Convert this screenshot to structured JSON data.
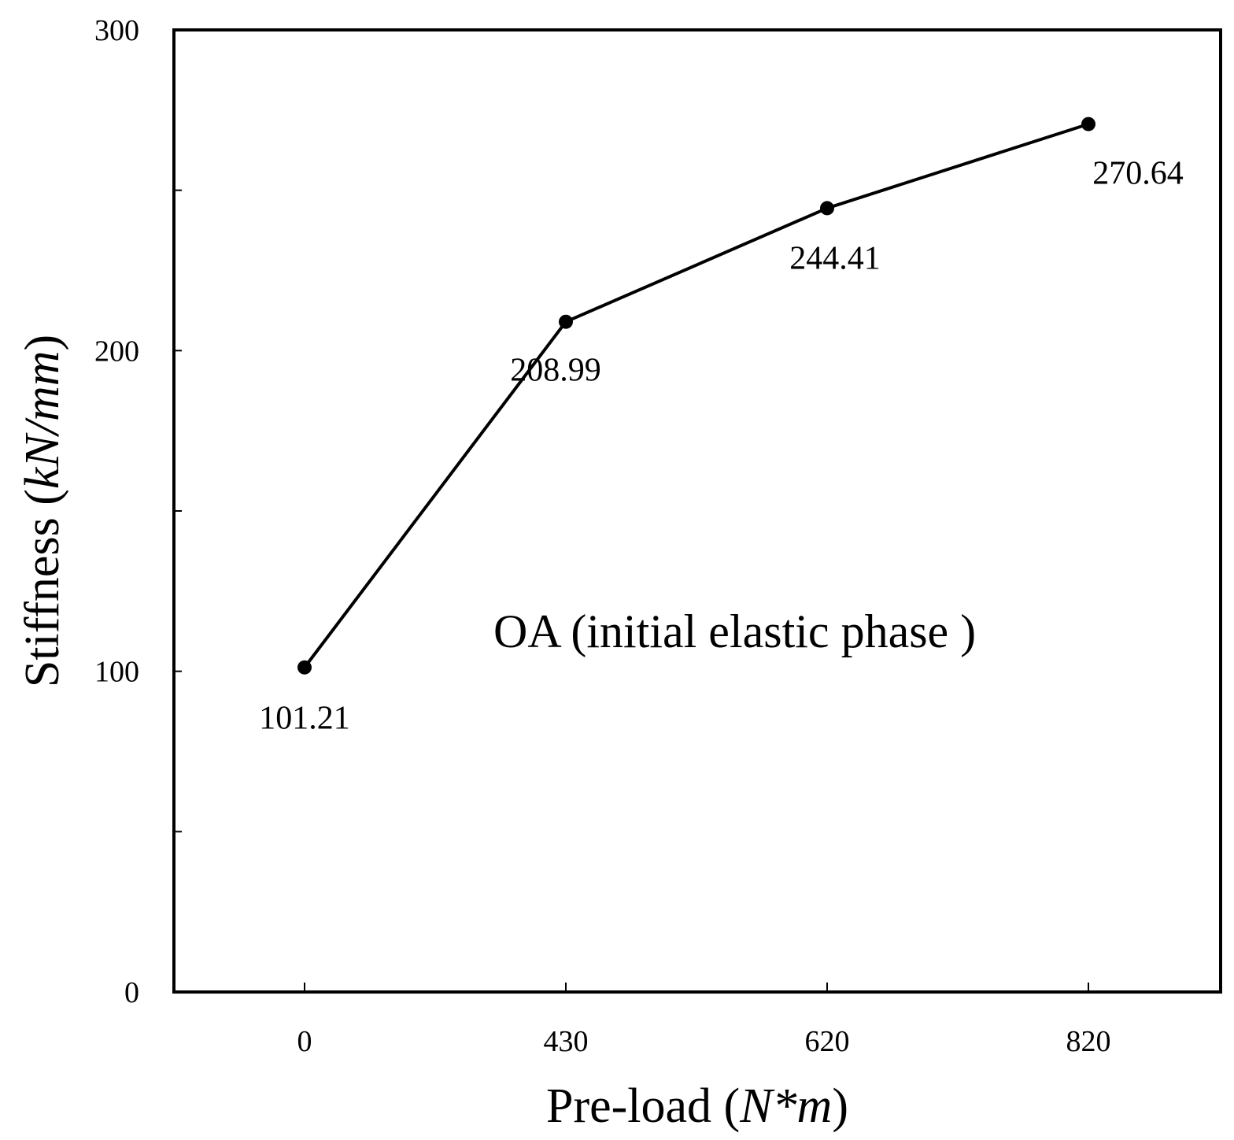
{
  "chart_data": {
    "type": "line",
    "categories": [
      "0",
      "430",
      "620",
      "820"
    ],
    "series": [
      {
        "values": [
          101.21,
          208.99,
          244.41,
          270.64
        ]
      }
    ],
    "data_labels": [
      "101.21",
      "208.99",
      "244.41",
      "270.64"
    ],
    "xlabel": {
      "text": "Pre-load (",
      "italic": "N*m",
      "close": ")"
    },
    "ylabel": {
      "text": "Stiffness (",
      "italic": "kN/mm",
      "close": ")"
    },
    "ylim": [
      0,
      300
    ],
    "yticks": [
      0,
      100,
      200,
      300
    ],
    "yticks_minor": [
      50,
      150,
      250
    ],
    "annotation": "OA (initial elastic phase )",
    "grid": false,
    "line_color": "#000000",
    "marker": "filled-circle"
  }
}
